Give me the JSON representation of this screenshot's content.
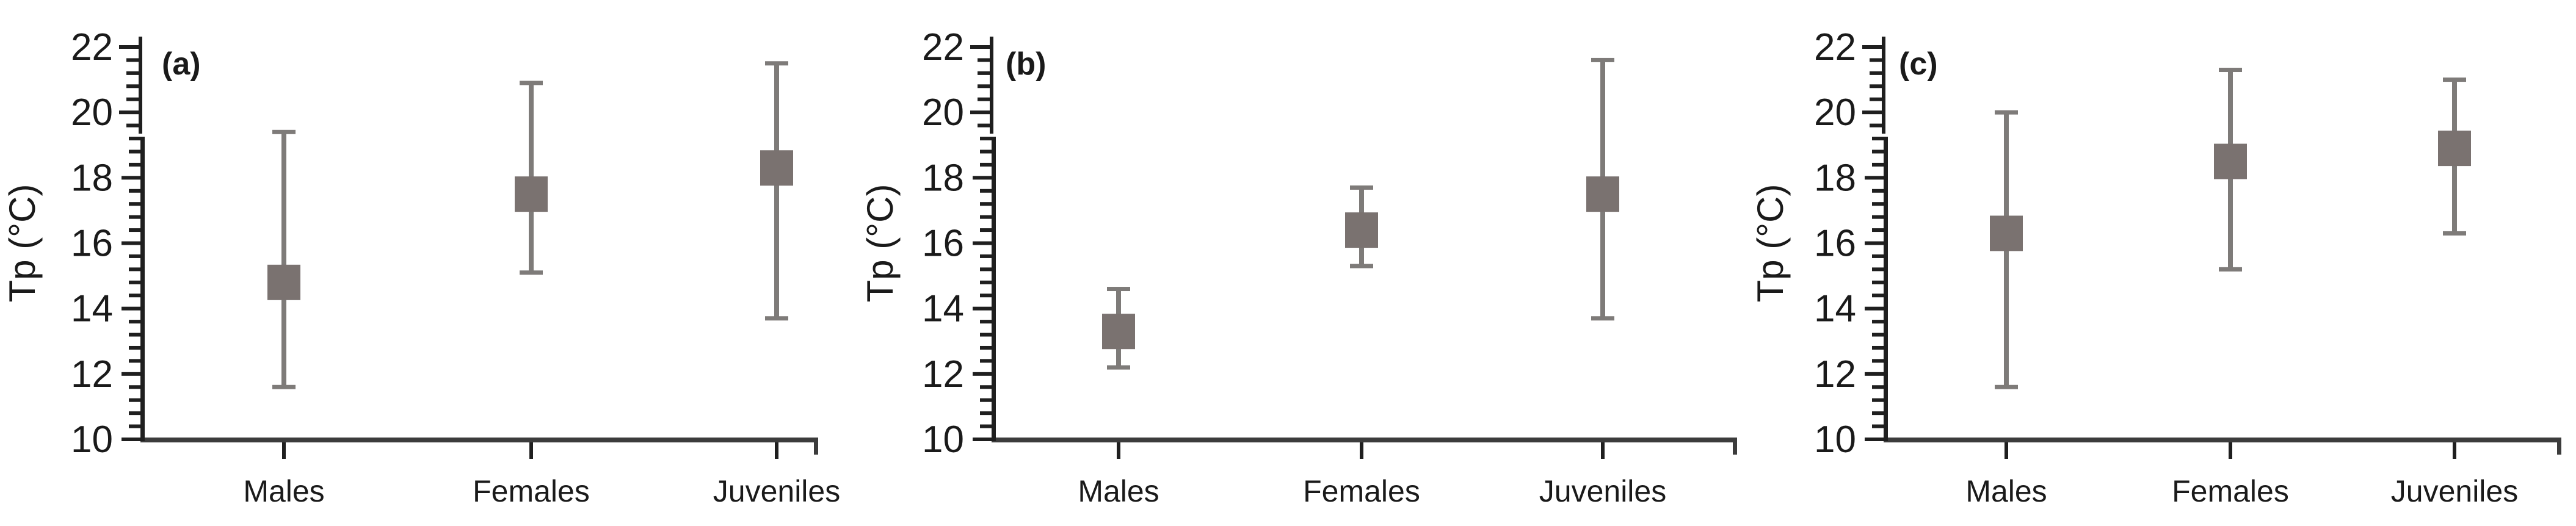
{
  "figure": {
    "background": "#ffffff",
    "axis_color": "#1f1f1f",
    "baseline_color": "#3c3c3c",
    "text_color": "#1a1a1a",
    "marker_color": "#7a7270",
    "errorbar_color": "#7e7b79"
  },
  "chart_data": [
    {
      "type": "scatter",
      "subtype": "mean-with-error-bars",
      "panel_label": "(a)",
      "ylabel": "Tp (°C)",
      "xlabel": "",
      "ylim": [
        10,
        22
      ],
      "yticks": [
        10,
        12,
        14,
        16,
        18,
        20,
        22
      ],
      "minor_tick_step": 0.4,
      "grid": false,
      "legend": "none",
      "categories": [
        "Males",
        "Females",
        "Juveniles"
      ],
      "series": [
        {
          "category": "Males",
          "mean": 14.8,
          "err_low": 11.6,
          "err_high": 19.4
        },
        {
          "category": "Females",
          "mean": 17.5,
          "err_low": 15.1,
          "err_high": 20.9
        },
        {
          "category": "Juveniles",
          "mean": 18.3,
          "err_low": 13.7,
          "err_high": 21.5
        }
      ]
    },
    {
      "type": "scatter",
      "subtype": "mean-with-error-bars",
      "panel_label": "(b)",
      "ylabel": "Tp (°C)",
      "xlabel": "",
      "ylim": [
        10,
        22
      ],
      "yticks": [
        10,
        12,
        14,
        16,
        18,
        20,
        22
      ],
      "minor_tick_step": 0.4,
      "grid": false,
      "legend": "none",
      "categories": [
        "Males",
        "Females",
        "Juveniles"
      ],
      "series": [
        {
          "category": "Males",
          "mean": 13.3,
          "err_low": 12.2,
          "err_high": 14.6
        },
        {
          "category": "Females",
          "mean": 16.4,
          "err_low": 15.3,
          "err_high": 17.7
        },
        {
          "category": "Juveniles",
          "mean": 17.5,
          "err_low": 13.7,
          "err_high": 21.6
        }
      ]
    },
    {
      "type": "scatter",
      "subtype": "mean-with-error-bars",
      "panel_label": "(c)",
      "ylabel": "Tp (°C)",
      "xlabel": "",
      "ylim": [
        10,
        22
      ],
      "yticks": [
        10,
        12,
        14,
        16,
        18,
        20,
        22
      ],
      "minor_tick_step": 0.4,
      "grid": false,
      "legend": "none",
      "categories": [
        "Males",
        "Females",
        "Juveniles"
      ],
      "series": [
        {
          "category": "Males",
          "mean": 16.3,
          "err_low": 11.6,
          "err_high": 20.0
        },
        {
          "category": "Females",
          "mean": 18.5,
          "err_low": 15.2,
          "err_high": 21.3
        },
        {
          "category": "Juveniles",
          "mean": 18.9,
          "err_low": 16.3,
          "err_high": 21.0
        }
      ]
    }
  ]
}
